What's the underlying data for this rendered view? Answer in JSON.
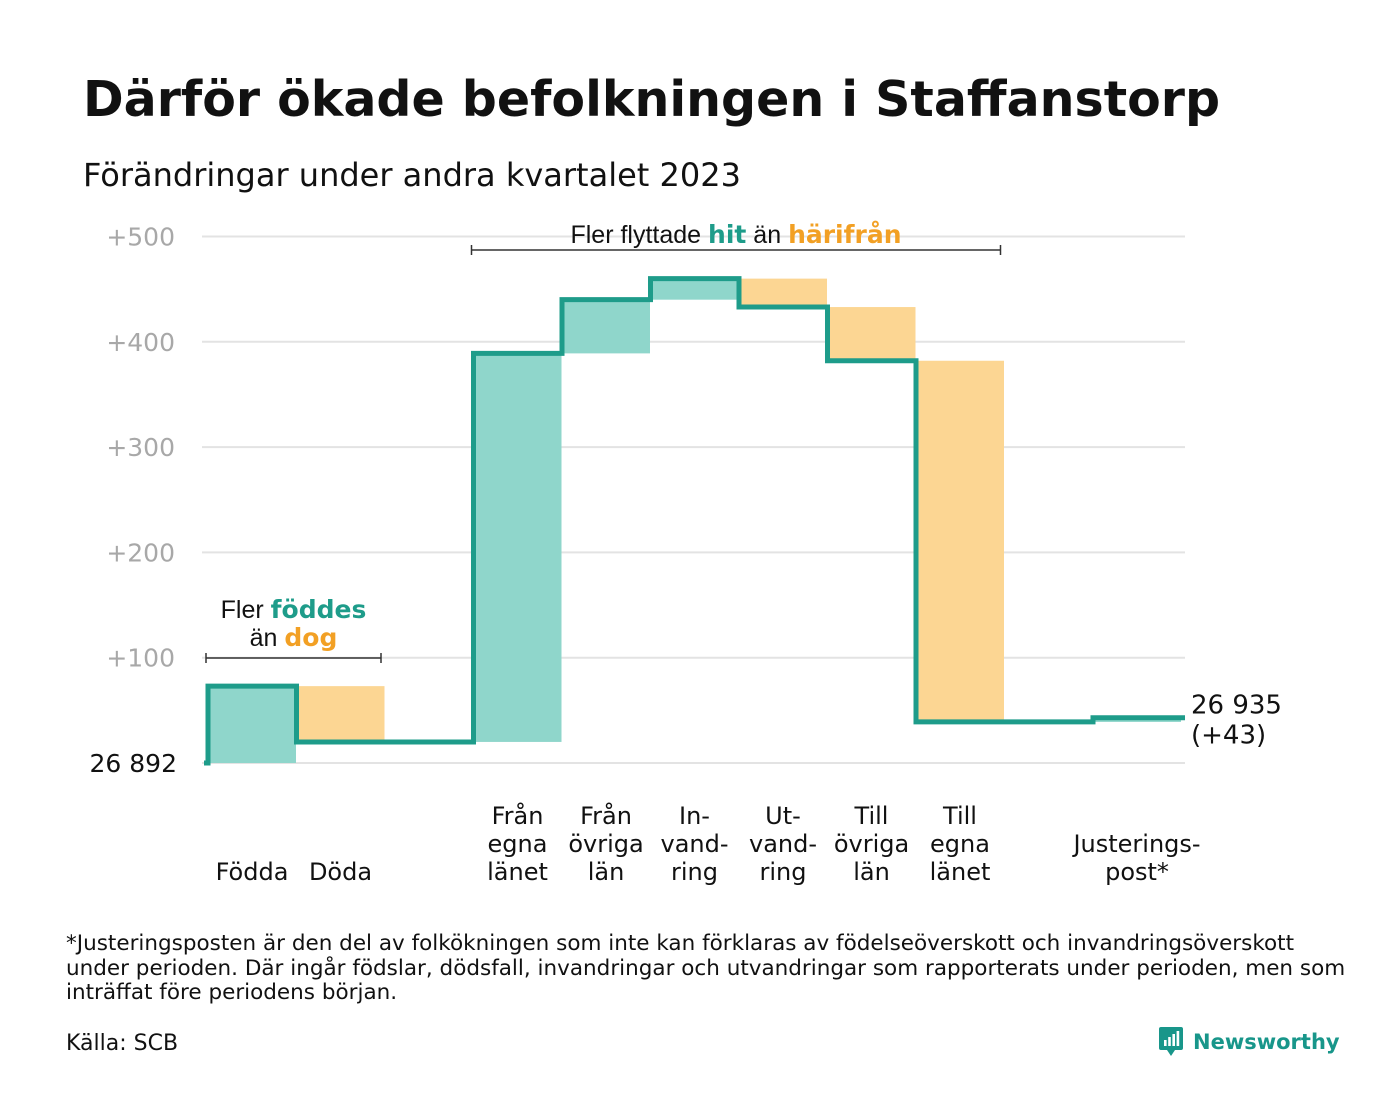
{
  "title": "Därför ökade befolkningen i Staffanstorp",
  "subtitle": "Förändringar under andra kvartalet 2023",
  "colors": {
    "increase": "#8fd6cb",
    "decrease": "#fcd693",
    "line": "#1e9c8a",
    "grid": "#e3e3e3",
    "tick": "#a8a8a8",
    "accent_green": "#1e9c8a",
    "accent_orange": "#f2a024"
  },
  "chart_data": {
    "type": "waterfall",
    "start_label": "26 892",
    "end_label": [
      "26 935",
      "(+43)"
    ],
    "ylim": [
      0,
      500
    ],
    "yticks": [
      100,
      200,
      300,
      400,
      500
    ],
    "ytick_labels": [
      "+100",
      "+200",
      "+300",
      "+400",
      "+500"
    ],
    "grid": true,
    "steps": [
      {
        "category": [
          "Födda"
        ],
        "change": 73
      },
      {
        "category": [
          "Döda"
        ],
        "change": -53
      },
      {
        "category": [],
        "change": 0
      },
      {
        "category": [
          "Från",
          "egna",
          "länet"
        ],
        "change": 369
      },
      {
        "category": [
          "Från",
          "övriga",
          "län"
        ],
        "change": 51
      },
      {
        "category": [
          "In-",
          "vand-",
          "ring"
        ],
        "change": 20
      },
      {
        "category": [
          "Ut-",
          "vand-",
          "ring"
        ],
        "change": -27
      },
      {
        "category": [
          "Till",
          "övriga",
          "län"
        ],
        "change": -51
      },
      {
        "category": [
          "Till",
          "egna",
          "länet"
        ],
        "change": -343
      },
      {
        "category": [],
        "change": 0
      },
      {
        "category": [
          "Justerings-",
          "post*"
        ],
        "change": 4
      }
    ],
    "annotations": [
      {
        "lines": [
          [
            {
              "t": "Fler ",
              "c": "plain"
            },
            {
              "t": "föddes",
              "c": "green"
            }
          ],
          [
            {
              "t": "än ",
              "c": "plain"
            },
            {
              "t": "dog",
              "c": "orange"
            }
          ]
        ],
        "span": [
          0,
          1
        ]
      },
      {
        "lines": [
          [
            {
              "t": "Fler flyttade ",
              "c": "plain"
            },
            {
              "t": "hit",
              "c": "green"
            },
            {
              "t": " än ",
              "c": "plain"
            },
            {
              "t": "härifrån",
              "c": "orange"
            }
          ]
        ],
        "span": [
          3,
          8
        ]
      }
    ]
  },
  "footnote": "*Justeringsposten är den del av folkökningen som inte kan förklaras av födelseöverskott och invandringsöverskott under perioden. Där ingår födslar, dödsfall, invandringar och utvandringar som rapporterats under perioden, men som inträffat före periodens början.",
  "source": "Källa: SCB",
  "brand": {
    "name": "Newsworthy",
    "icon": "newsworthy-logo-icon"
  }
}
